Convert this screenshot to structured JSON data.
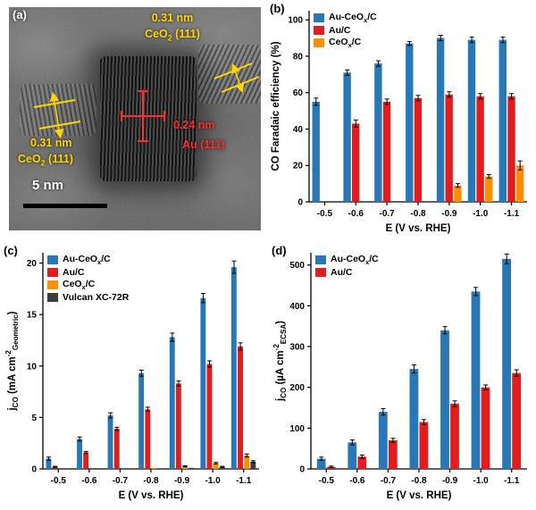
{
  "panel_a": {
    "label": "(a)",
    "scale_bar_text": "5 nm",
    "annotations": {
      "top_spacing": "0.31 nm",
      "top_plane": "CeO_2 (111)",
      "left_spacing": "0.31 nm",
      "left_plane": "CeO_2 (111)",
      "au_spacing": "0.24 nm",
      "au_plane": "Au (111)"
    },
    "annotation_colors": {
      "ceo2": "#ffd600",
      "au": "#ff2d2d",
      "scale": "#ffffff"
    }
  },
  "colors": {
    "au_ceox_c": "#2878b8",
    "au_c": "#e11d1d",
    "ceox_c": "#ff8f00",
    "vulcan": "#3d3d3d"
  },
  "chart_data": [
    {
      "type": "bar",
      "panel_label": "(b)",
      "title": "",
      "xlabel": "E (V vs. RHE)",
      "ylabel": "CO Faradaic efficiency (%)",
      "ylim": [
        0,
        105
      ],
      "yticks": [
        0,
        20,
        40,
        60,
        80,
        100
      ],
      "categories": [
        "-0.5",
        "-0.6",
        "-0.7",
        "-0.8",
        "-0.9",
        "-1.0",
        "-1.1"
      ],
      "legend_position": "top-left",
      "grid": false,
      "series": [
        {
          "name": "Au-CeO_x/C",
          "color": "#2878b8",
          "values": [
            55,
            71,
            76,
            87,
            90,
            89,
            89
          ],
          "errors": [
            2,
            1.5,
            1.5,
            1,
            1.5,
            1.5,
            1.5
          ]
        },
        {
          "name": "Au/C",
          "color": "#e11d1d",
          "values": [
            0,
            43,
            55,
            57,
            59,
            58,
            58
          ],
          "errors": [
            0,
            2,
            1.5,
            1.5,
            1.5,
            1.5,
            1.5
          ]
        },
        {
          "name": "CeO_x/C",
          "color": "#ff8f00",
          "values": [
            0,
            0,
            0,
            0,
            9,
            14,
            20
          ],
          "errors": [
            0,
            0,
            0,
            0,
            1,
            1,
            2.5
          ]
        }
      ]
    },
    {
      "type": "bar",
      "panel_label": "(c)",
      "title": "",
      "xlabel": "E (V vs. RHE)",
      "ylabel": "j_CO (mA cm^-2_Geometric)",
      "ylim": [
        0,
        21
      ],
      "yticks": [
        0,
        5,
        10,
        15,
        20
      ],
      "categories": [
        "-0.5",
        "-0.6",
        "-0.7",
        "-0.8",
        "-0.9",
        "-1.0",
        "-1.1"
      ],
      "legend_position": "top-left",
      "grid": false,
      "series": [
        {
          "name": "Au-CeO_x/C",
          "color": "#2878b8",
          "values": [
            1.0,
            2.9,
            5.2,
            9.3,
            12.8,
            16.6,
            19.6
          ],
          "errors": [
            0.15,
            0.2,
            0.25,
            0.3,
            0.4,
            0.45,
            0.6
          ]
        },
        {
          "name": "Au/C",
          "color": "#e11d1d",
          "values": [
            0.2,
            1.6,
            3.9,
            5.8,
            8.3,
            10.2,
            11.9
          ],
          "errors": [
            0.05,
            0.1,
            0.15,
            0.2,
            0.25,
            0.3,
            0.35
          ]
        },
        {
          "name": "CeO_x/C",
          "color": "#ff8f00",
          "values": [
            0,
            0,
            0,
            0.1,
            0.25,
            0.55,
            1.3
          ],
          "errors": [
            0,
            0,
            0,
            0,
            0.05,
            0.08,
            0.15
          ]
        },
        {
          "name": "Vulcan XC-72R",
          "color": "#3d3d3d",
          "values": [
            0,
            0,
            0,
            0,
            0.1,
            0.2,
            0.7
          ],
          "errors": [
            0,
            0,
            0,
            0,
            0,
            0.05,
            0.1
          ]
        }
      ]
    },
    {
      "type": "bar",
      "panel_label": "(d)",
      "title": "",
      "xlabel": "E (V vs. RHE)",
      "ylabel": "j_CO (µA cm^-2_ECSA)",
      "ylim": [
        0,
        530
      ],
      "yticks": [
        0,
        100,
        200,
        300,
        400,
        500
      ],
      "categories": [
        "-0.5",
        "-0.6",
        "-0.7",
        "-0.8",
        "-0.9",
        "-1.0",
        "-1.1"
      ],
      "legend_position": "top-left",
      "grid": false,
      "series": [
        {
          "name": "Au-CeO_x/C",
          "color": "#2878b8",
          "values": [
            25,
            65,
            140,
            245,
            340,
            435,
            515
          ],
          "errors": [
            4,
            6,
            8,
            10,
            9,
            10,
            12
          ]
        },
        {
          "name": "Au/C",
          "color": "#e11d1d",
          "values": [
            5,
            30,
            70,
            115,
            160,
            200,
            235
          ],
          "errors": [
            2,
            4,
            5,
            6,
            7,
            6,
            8
          ]
        }
      ]
    }
  ]
}
